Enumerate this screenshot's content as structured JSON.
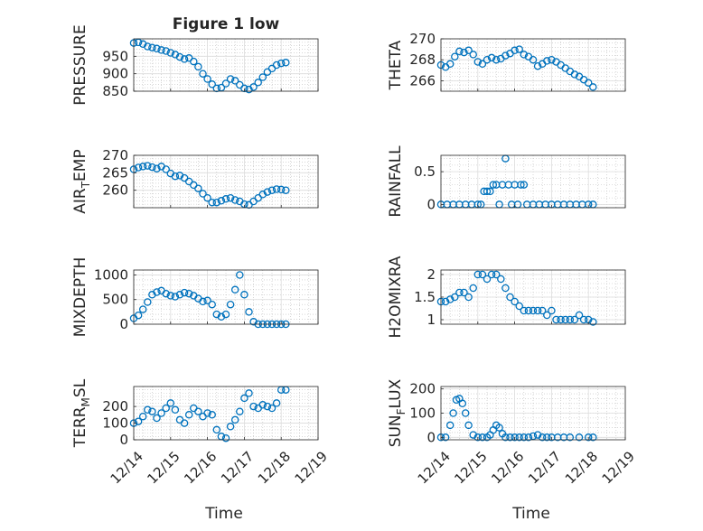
{
  "figure": {
    "title": "Figure 1 low",
    "xlabel": "Time",
    "marker_color": "#0072BD",
    "x_tick_labels": [
      "12/14",
      "12/15",
      "12/16",
      "12/17",
      "12/18",
      "12/19"
    ]
  },
  "chart_data": [
    {
      "type": "scatter",
      "panel": "top-left",
      "title": "Figure 1 low",
      "xlabel": "",
      "ylabel": "PRESSURE",
      "xlim": [
        "12/14",
        "12/19"
      ],
      "ylim": [
        850,
        1000
      ],
      "yticks": [
        850,
        900,
        950
      ],
      "grid": true,
      "x": [
        "12/14 00:00",
        "12/14 03:00",
        "12/14 06:00",
        "12/14 09:00",
        "12/14 12:00",
        "12/14 15:00",
        "12/14 18:00",
        "12/14 21:00",
        "12/15 00:00",
        "12/15 03:00",
        "12/15 06:00",
        "12/15 09:00",
        "12/15 12:00",
        "12/15 15:00",
        "12/15 18:00",
        "12/15 21:00",
        "12/16 00:00",
        "12/16 03:00",
        "12/16 06:00",
        "12/16 09:00",
        "12/16 12:00",
        "12/16 15:00",
        "12/16 18:00",
        "12/16 21:00",
        "12/17 00:00",
        "12/17 03:00",
        "12/17 06:00",
        "12/17 09:00",
        "12/17 12:00",
        "12/17 15:00",
        "12/17 18:00",
        "12/17 21:00",
        "12/18 00:00",
        "12/18 03:00"
      ],
      "y": [
        988,
        990,
        985,
        978,
        975,
        972,
        968,
        965,
        960,
        955,
        948,
        942,
        945,
        935,
        920,
        900,
        885,
        870,
        858,
        860,
        872,
        885,
        880,
        868,
        858,
        855,
        862,
        875,
        890,
        905,
        915,
        925,
        930,
        932
      ]
    },
    {
      "type": "scatter",
      "panel": "top-right",
      "xlabel": "",
      "ylabel": "THETA",
      "xlim": [
        "12/14",
        "12/19"
      ],
      "ylim": [
        265,
        270
      ],
      "yticks": [
        266,
        268,
        270
      ],
      "grid": true,
      "x": [
        "12/14 00:00",
        "12/14 03:00",
        "12/14 06:00",
        "12/14 09:00",
        "12/14 12:00",
        "12/14 15:00",
        "12/14 18:00",
        "12/14 21:00",
        "12/15 00:00",
        "12/15 03:00",
        "12/15 06:00",
        "12/15 09:00",
        "12/15 12:00",
        "12/15 15:00",
        "12/15 18:00",
        "12/15 21:00",
        "12/16 00:00",
        "12/16 03:00",
        "12/16 06:00",
        "12/16 09:00",
        "12/16 12:00",
        "12/16 15:00",
        "12/16 18:00",
        "12/16 21:00",
        "12/17 00:00",
        "12/17 03:00",
        "12/17 06:00",
        "12/17 09:00",
        "12/17 12:00",
        "12/17 15:00",
        "12/17 18:00",
        "12/17 21:00",
        "12/18 00:00",
        "12/18 03:00"
      ],
      "y": [
        267.5,
        267.3,
        267.6,
        268.3,
        268.8,
        268.7,
        268.9,
        268.5,
        267.8,
        267.6,
        268.0,
        268.2,
        268.0,
        268.1,
        268.4,
        268.6,
        268.9,
        269.0,
        268.5,
        268.3,
        268.0,
        267.4,
        267.6,
        267.9,
        268.0,
        267.8,
        267.5,
        267.2,
        266.9,
        266.6,
        266.4,
        266.1,
        265.8,
        265.4
      ]
    },
    {
      "type": "scatter",
      "panel": "row2-left",
      "xlabel": "",
      "ylabel": "AIR_TEMP",
      "ylabel_main": "AIR",
      "ylabel_sub": "T",
      "ylabel_rest": "EMP",
      "xlim": [
        "12/14",
        "12/19"
      ],
      "ylim": [
        255,
        270
      ],
      "yticks": [
        260,
        265,
        270
      ],
      "grid": true,
      "x": [
        "12/14 00:00",
        "12/14 03:00",
        "12/14 06:00",
        "12/14 09:00",
        "12/14 12:00",
        "12/14 15:00",
        "12/14 18:00",
        "12/14 21:00",
        "12/15 00:00",
        "12/15 03:00",
        "12/15 06:00",
        "12/15 09:00",
        "12/15 12:00",
        "12/15 15:00",
        "12/15 18:00",
        "12/15 21:00",
        "12/16 00:00",
        "12/16 03:00",
        "12/16 06:00",
        "12/16 09:00",
        "12/16 12:00",
        "12/16 15:00",
        "12/16 18:00",
        "12/16 21:00",
        "12/17 00:00",
        "12/17 03:00",
        "12/17 06:00",
        "12/17 09:00",
        "12/17 12:00",
        "12/17 15:00",
        "12/17 18:00",
        "12/17 21:00",
        "12/18 00:00",
        "12/18 03:00"
      ],
      "y": [
        266.0,
        266.5,
        266.8,
        267.0,
        266.6,
        266.2,
        266.8,
        266.0,
        264.8,
        264.0,
        264.2,
        263.5,
        262.5,
        261.5,
        260.5,
        259.0,
        257.8,
        256.5,
        256.5,
        257.0,
        257.5,
        257.8,
        257.2,
        256.8,
        256.0,
        255.8,
        256.8,
        257.8,
        258.8,
        259.5,
        260.0,
        260.3,
        260.2,
        260.0
      ]
    },
    {
      "type": "scatter",
      "panel": "row2-right",
      "xlabel": "",
      "ylabel": "RAINFALL",
      "xlim": [
        "12/14",
        "12/19"
      ],
      "ylim": [
        -0.05,
        0.75
      ],
      "yticks": [
        0,
        0.5
      ],
      "grid": true,
      "x": [
        "12/14 00:00",
        "12/14 04:00",
        "12/14 08:00",
        "12/14 12:00",
        "12/14 16:00",
        "12/14 20:00",
        "12/15 00:00",
        "12/15 02:00",
        "12/15 04:00",
        "12/15 06:00",
        "12/15 08:00",
        "12/15 10:00",
        "12/15 12:00",
        "12/15 14:00",
        "12/15 16:00",
        "12/15 18:00",
        "12/15 20:00",
        "12/15 22:00",
        "12/16 00:00",
        "12/16 02:00",
        "12/16 04:00",
        "12/16 06:00",
        "12/16 08:00",
        "12/16 12:00",
        "12/16 16:00",
        "12/16 20:00",
        "12/17 00:00",
        "12/17 04:00",
        "12/17 08:00",
        "12/17 12:00",
        "12/17 16:00",
        "12/17 20:00",
        "12/18 00:00",
        "12/18 03:00"
      ],
      "y": [
        0,
        0,
        0,
        0,
        0,
        0,
        0,
        0,
        0.2,
        0.2,
        0.2,
        0.3,
        0.3,
        0,
        0.3,
        0.7,
        0.3,
        0,
        0.3,
        0,
        0.3,
        0.3,
        0,
        0,
        0,
        0,
        0,
        0,
        0,
        0,
        0,
        0,
        0,
        0
      ]
    },
    {
      "type": "scatter",
      "panel": "row3-left",
      "xlabel": "",
      "ylabel": "MIXDEPTH",
      "xlim": [
        "12/14",
        "12/19"
      ],
      "ylim": [
        0,
        1100
      ],
      "yticks": [
        0,
        500,
        1000
      ],
      "grid": true,
      "x": [
        "12/14 00:00",
        "12/14 03:00",
        "12/14 06:00",
        "12/14 09:00",
        "12/14 12:00",
        "12/14 15:00",
        "12/14 18:00",
        "12/14 21:00",
        "12/15 00:00",
        "12/15 03:00",
        "12/15 06:00",
        "12/15 09:00",
        "12/15 12:00",
        "12/15 15:00",
        "12/15 18:00",
        "12/15 21:00",
        "12/16 00:00",
        "12/16 03:00",
        "12/16 06:00",
        "12/16 09:00",
        "12/16 12:00",
        "12/16 15:00",
        "12/16 18:00",
        "12/16 21:00",
        "12/17 00:00",
        "12/17 03:00",
        "12/17 06:00",
        "12/17 09:00",
        "12/17 12:00",
        "12/17 15:00",
        "12/17 18:00",
        "12/17 21:00",
        "12/18 00:00",
        "12/18 03:00"
      ],
      "y": [
        120,
        180,
        300,
        450,
        600,
        650,
        680,
        620,
        580,
        560,
        600,
        640,
        620,
        580,
        520,
        460,
        480,
        400,
        200,
        150,
        200,
        400,
        700,
        1000,
        600,
        250,
        50,
        0,
        0,
        0,
        0,
        0,
        0,
        0
      ]
    },
    {
      "type": "scatter",
      "panel": "row3-right",
      "xlabel": "",
      "ylabel": "H2OMIXRA",
      "xlim": [
        "12/14",
        "12/19"
      ],
      "ylim": [
        0.9,
        2.1
      ],
      "yticks": [
        1,
        1.5,
        2
      ],
      "grid": true,
      "x": [
        "12/14 00:00",
        "12/14 03:00",
        "12/14 06:00",
        "12/14 09:00",
        "12/14 12:00",
        "12/14 15:00",
        "12/14 18:00",
        "12/14 21:00",
        "12/15 00:00",
        "12/15 03:00",
        "12/15 06:00",
        "12/15 09:00",
        "12/15 12:00",
        "12/15 15:00",
        "12/15 18:00",
        "12/15 21:00",
        "12/16 00:00",
        "12/16 03:00",
        "12/16 06:00",
        "12/16 09:00",
        "12/16 12:00",
        "12/16 15:00",
        "12/16 18:00",
        "12/16 21:00",
        "12/17 00:00",
        "12/17 03:00",
        "12/17 06:00",
        "12/17 09:00",
        "12/17 12:00",
        "12/17 15:00",
        "12/17 18:00",
        "12/17 21:00",
        "12/18 00:00",
        "12/18 03:00"
      ],
      "y": [
        1.4,
        1.4,
        1.45,
        1.5,
        1.6,
        1.6,
        1.5,
        1.7,
        2.0,
        2.0,
        1.9,
        2.0,
        2.0,
        1.9,
        1.7,
        1.5,
        1.4,
        1.3,
        1.2,
        1.2,
        1.2,
        1.2,
        1.2,
        1.1,
        1.2,
        1.0,
        1.0,
        1.0,
        1.0,
        1.0,
        1.1,
        1.0,
        1.0,
        0.95
      ]
    },
    {
      "type": "scatter",
      "panel": "bottom-left",
      "xlabel": "Time",
      "ylabel": "TERR_MSL",
      "ylabel_main": "TERR",
      "ylabel_sub": "M",
      "ylabel_rest": "SL",
      "xlim": [
        "12/14",
        "12/19"
      ],
      "ylim": [
        0,
        320
      ],
      "yticks": [
        0,
        100,
        200
      ],
      "grid": true,
      "x": [
        "12/14 00:00",
        "12/14 03:00",
        "12/14 06:00",
        "12/14 09:00",
        "12/14 12:00",
        "12/14 15:00",
        "12/14 18:00",
        "12/14 21:00",
        "12/15 00:00",
        "12/15 03:00",
        "12/15 06:00",
        "12/15 09:00",
        "12/15 12:00",
        "12/15 15:00",
        "12/15 18:00",
        "12/15 21:00",
        "12/16 00:00",
        "12/16 03:00",
        "12/16 06:00",
        "12/16 09:00",
        "12/16 12:00",
        "12/16 15:00",
        "12/16 18:00",
        "12/16 21:00",
        "12/17 00:00",
        "12/17 03:00",
        "12/17 06:00",
        "12/17 09:00",
        "12/17 12:00",
        "12/17 15:00",
        "12/17 18:00",
        "12/17 21:00",
        "12/18 00:00",
        "12/18 03:00"
      ],
      "y": [
        100,
        110,
        140,
        180,
        170,
        130,
        160,
        190,
        220,
        180,
        120,
        100,
        150,
        190,
        170,
        140,
        160,
        150,
        60,
        20,
        10,
        80,
        120,
        170,
        250,
        280,
        200,
        190,
        210,
        200,
        190,
        220,
        300,
        300
      ]
    },
    {
      "type": "scatter",
      "panel": "bottom-right",
      "xlabel": "Time",
      "ylabel": "SUN_FLUX",
      "ylabel_main": "SUN",
      "ylabel_sub": "F",
      "ylabel_rest": "LUX",
      "xlim": [
        "12/14",
        "12/19"
      ],
      "ylim": [
        -10,
        210
      ],
      "yticks": [
        0,
        100,
        200
      ],
      "grid": true,
      "x": [
        "12/14 00:00",
        "12/14 03:00",
        "12/14 06:00",
        "12/14 08:00",
        "12/14 10:00",
        "12/14 12:00",
        "12/14 14:00",
        "12/14 16:00",
        "12/14 18:00",
        "12/14 21:00",
        "12/15 00:00",
        "12/15 03:00",
        "12/15 06:00",
        "12/15 08:00",
        "12/15 10:00",
        "12/15 12:00",
        "12/15 14:00",
        "12/15 16:00",
        "12/15 18:00",
        "12/15 21:00",
        "12/16 00:00",
        "12/16 03:00",
        "12/16 06:00",
        "12/16 09:00",
        "12/16 12:00",
        "12/16 15:00",
        "12/16 18:00",
        "12/16 21:00",
        "12/17 00:00",
        "12/17 04:00",
        "12/17 08:00",
        "12/17 12:00",
        "12/17 18:00",
        "12/18 00:00",
        "12/18 03:00"
      ],
      "y": [
        0,
        0,
        50,
        100,
        155,
        160,
        140,
        100,
        50,
        10,
        0,
        0,
        0,
        10,
        30,
        50,
        40,
        15,
        0,
        0,
        0,
        0,
        0,
        0,
        5,
        10,
        0,
        0,
        0,
        0,
        0,
        0,
        0,
        0,
        0
      ]
    }
  ]
}
